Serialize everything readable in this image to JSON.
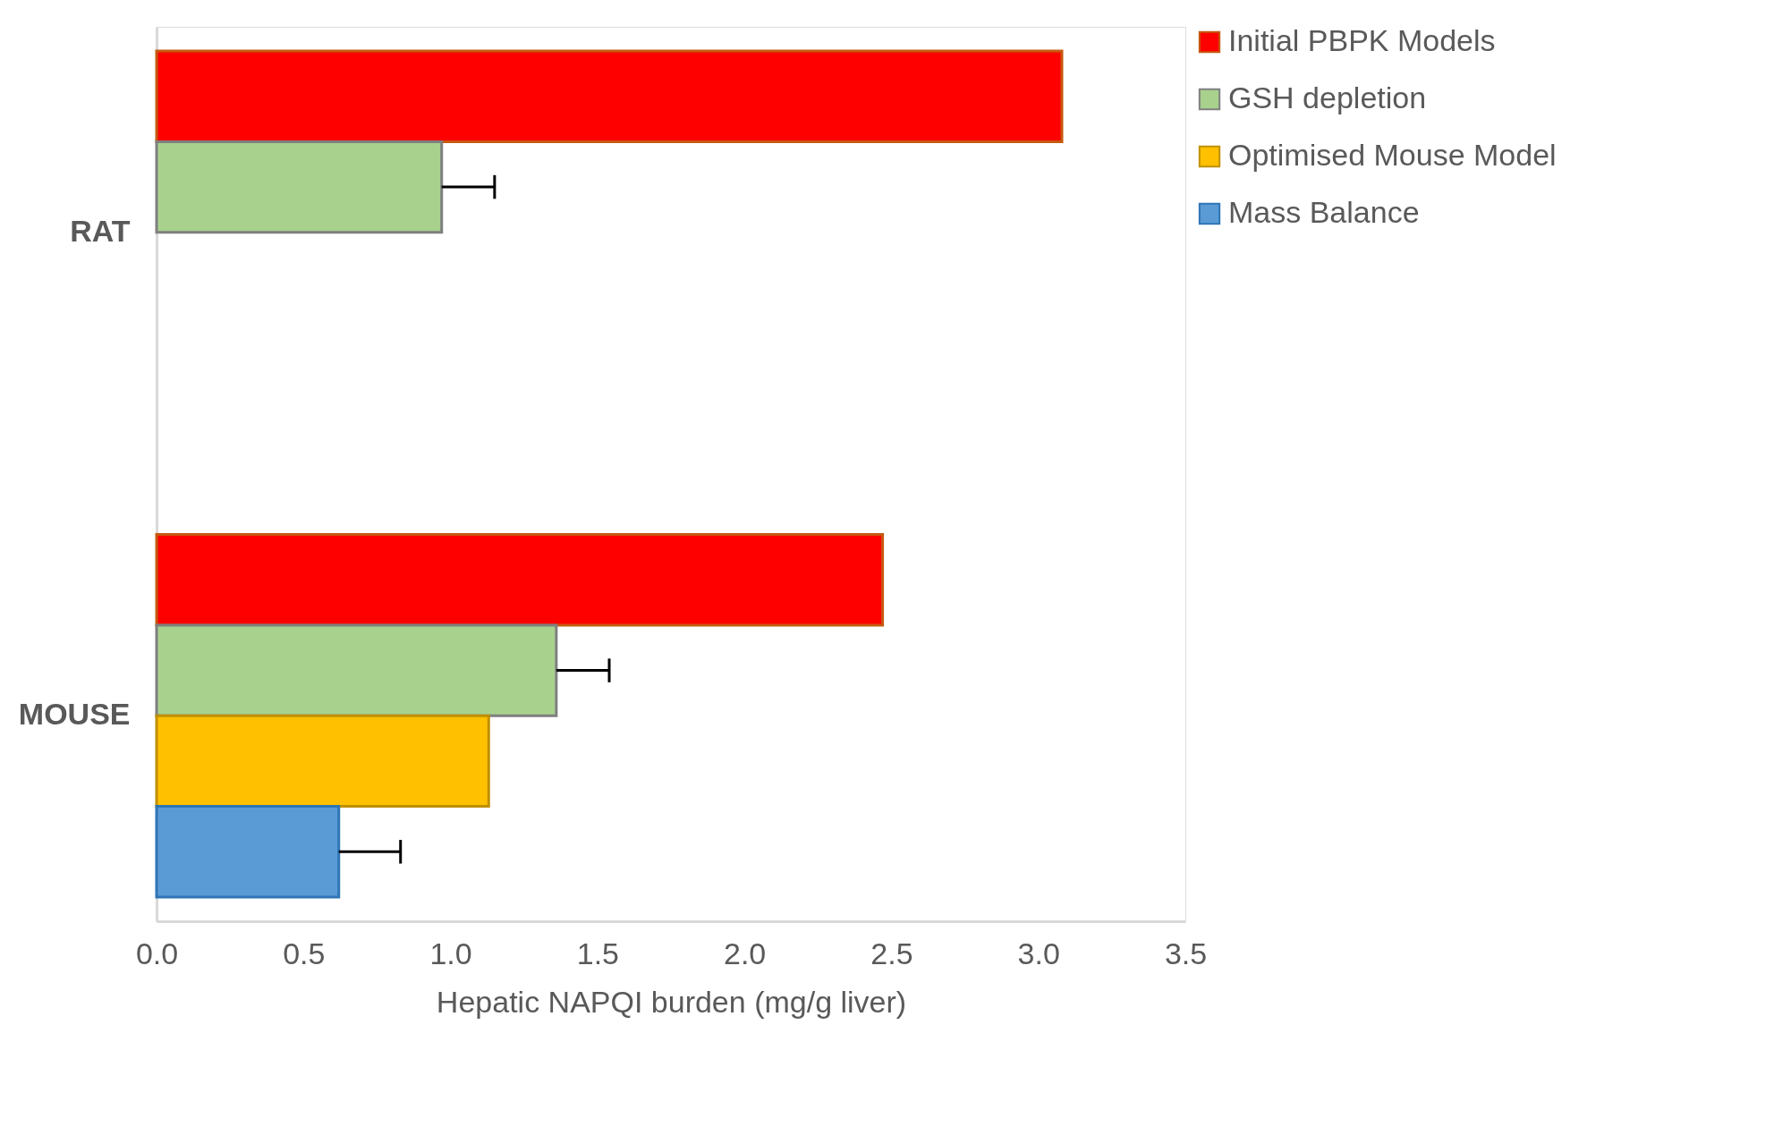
{
  "chart_data": {
    "type": "bar",
    "orientation": "horizontal",
    "xlabel": "Hepatic NAPQI burden (mg/g liver)",
    "categories": [
      "RAT",
      "MOUSE"
    ],
    "series": [
      {
        "name": "Initial PBPK Models",
        "color": "#ff0000",
        "values": [
          3.08,
          2.47
        ]
      },
      {
        "name": "GSH depletion",
        "color": "#a9d18e",
        "values": [
          0.97,
          1.36
        ],
        "errors": [
          [
            0.97,
            1.15
          ],
          [
            1.36,
            1.54
          ]
        ]
      },
      {
        "name": "Optimised Mouse Model",
        "color": "#ffc000",
        "values": [
          null,
          1.13
        ]
      },
      {
        "name": "Mass Balance",
        "color": "#5b9bd5",
        "values": [
          null,
          0.62
        ],
        "errors": [
          null,
          [
            0.62,
            0.83
          ]
        ]
      }
    ],
    "xlim": [
      0,
      3.5
    ],
    "xticks": [
      {
        "value": 0,
        "label": "0.0"
      },
      {
        "value": 0.5,
        "label": "0.5"
      },
      {
        "value": 1,
        "label": "1.0"
      },
      {
        "value": 1.5,
        "label": "1.5"
      },
      {
        "value": 2,
        "label": "2.0"
      },
      {
        "value": 2.5,
        "label": "2.5"
      },
      {
        "value": 3,
        "label": "3.0"
      },
      {
        "value": 3.5,
        "label": "3.5"
      }
    ],
    "grid": false,
    "legend": "right"
  }
}
